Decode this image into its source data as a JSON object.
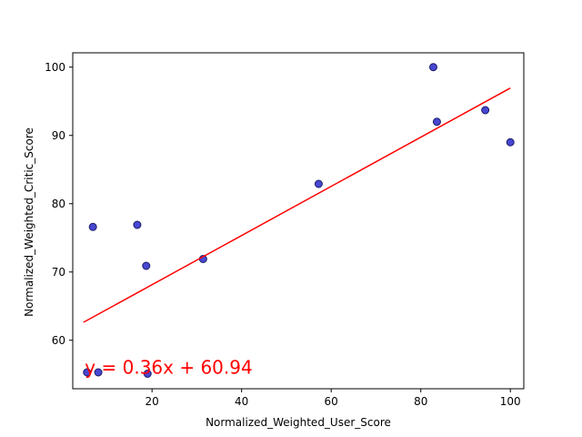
{
  "chart_data": {
    "type": "scatter",
    "title": "",
    "xlabel": "Normalized_Weighted_User_Score",
    "ylabel": "Normalized_Weighted_Critic_Score",
    "xlim": [
      2.3,
      103.0
    ],
    "ylim": [
      52.9,
      102.1
    ],
    "xticks": [
      20,
      40,
      60,
      80,
      100
    ],
    "yticks": [
      60,
      70,
      80,
      90,
      100
    ],
    "grid": false,
    "legend": "none",
    "points": [
      {
        "x": 5.5,
        "y": 55.3
      },
      {
        "x": 8.0,
        "y": 55.3
      },
      {
        "x": 6.8,
        "y": 76.6
      },
      {
        "x": 16.7,
        "y": 76.9
      },
      {
        "x": 18.7,
        "y": 70.9
      },
      {
        "x": 19.0,
        "y": 55.1
      },
      {
        "x": 31.4,
        "y": 71.9
      },
      {
        "x": 57.2,
        "y": 82.9
      },
      {
        "x": 82.8,
        "y": 100.0
      },
      {
        "x": 83.6,
        "y": 92.0
      },
      {
        "x": 94.4,
        "y": 93.7
      },
      {
        "x": 100.0,
        "y": 89.0
      }
    ],
    "fit": {
      "slope": 0.36,
      "intercept": 60.94,
      "x_start": 4.7,
      "x_end": 100.0
    },
    "annotation": {
      "text": "y = 0.36x + 60.94",
      "x": 5.0,
      "y": 55.5
    },
    "colors": {
      "point_fill": "#3333cc",
      "point_edge": "#1a1a66",
      "fit_line": "#ff0000",
      "annotation": "#ff0000"
    }
  }
}
